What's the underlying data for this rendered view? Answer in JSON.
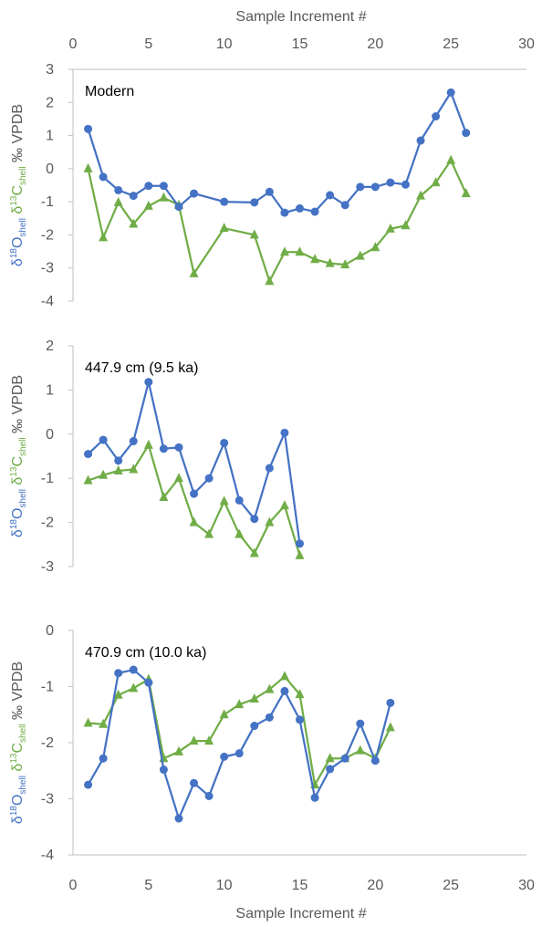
{
  "chart_data": {
    "type": "line",
    "x_axis": {
      "title": "Sample Increment #",
      "range": [
        0,
        30
      ],
      "ticks": [
        0,
        5,
        10,
        15,
        20,
        25,
        30
      ],
      "tick_labels": [
        "0",
        "5",
        "10",
        "15",
        "20",
        "25",
        "30"
      ]
    },
    "y_axis_label": {
      "o_part": "δ18Oshell",
      "c_part": "δ13Cshell",
      "unit": "‰ VPDB",
      "o_prefix": "δ",
      "o_sup": "18",
      "o_elem": "O",
      "o_sub": "shell",
      "c_prefix": "δ",
      "c_sup": "13",
      "c_elem": "C",
      "c_sub": "shell",
      "o_color": "#4472C4",
      "c_color": "#70AD47",
      "unit_color": "#595959"
    },
    "colors": {
      "d18O": "#4472C4",
      "d13C": "#70AD47",
      "axis": "#BFBFBF",
      "text": "#595959"
    },
    "panels": [
      {
        "label": "Modern",
        "ylim": [
          -4,
          3
        ],
        "yticks": [
          -4,
          -3,
          -2,
          -1,
          0,
          1,
          2,
          3
        ],
        "ytick_labels": [
          "-4",
          "-3",
          "-2",
          "-1",
          "0",
          "1",
          "2",
          "3"
        ],
        "series": [
          {
            "key": "d18O",
            "marker": "circle",
            "x": [
              1,
              2,
              3,
              4,
              5,
              6,
              7,
              8,
              10,
              12,
              13,
              14,
              15,
              16,
              17,
              18,
              19,
              20,
              21,
              22,
              23,
              24,
              25,
              26
            ],
            "y": [
              1.2,
              -0.25,
              -0.65,
              -0.82,
              -0.52,
              -0.52,
              -1.15,
              -0.75,
              -1.0,
              -1.02,
              -0.7,
              -1.33,
              -1.2,
              -1.3,
              -0.8,
              -1.1,
              -0.55,
              -0.55,
              -0.42,
              -0.48,
              0.85,
              1.58,
              2.3,
              1.08
            ]
          },
          {
            "key": "d13C",
            "marker": "triangle",
            "x": [
              1,
              2,
              3,
              4,
              5,
              6,
              7,
              8,
              10,
              12,
              13,
              14,
              15,
              16,
              17,
              18,
              19,
              20,
              21,
              22,
              23,
              24,
              25,
              26
            ],
            "y": [
              0.0,
              -2.08,
              -1.02,
              -1.67,
              -1.13,
              -0.88,
              -1.1,
              -3.17,
              -1.8,
              -2.0,
              -3.4,
              -2.52,
              -2.52,
              -2.74,
              -2.86,
              -2.9,
              -2.64,
              -2.38,
              -1.82,
              -1.72,
              -0.82,
              -0.42,
              0.25,
              -0.75
            ]
          }
        ]
      },
      {
        "label": "447.9 cm (9.5 ka)",
        "ylim": [
          -3,
          2
        ],
        "yticks": [
          -3,
          -2,
          -1,
          0,
          1,
          2
        ],
        "ytick_labels": [
          "-3",
          "-2",
          "-1",
          "0",
          "1",
          "2"
        ],
        "series": [
          {
            "key": "d18O",
            "marker": "circle",
            "x": [
              1,
              2,
              3,
              4,
              5,
              6,
              7,
              8,
              9,
              10,
              11,
              12,
              13,
              14,
              15
            ],
            "y": [
              -0.45,
              -0.13,
              -0.6,
              -0.16,
              1.18,
              -0.33,
              -0.3,
              -1.35,
              -1.0,
              -0.2,
              -1.5,
              -1.92,
              -0.77,
              0.03,
              -2.48
            ]
          },
          {
            "key": "d13C",
            "marker": "triangle",
            "x": [
              1,
              2,
              3,
              4,
              5,
              6,
              7,
              8,
              9,
              10,
              11,
              12,
              13,
              14,
              15
            ],
            "y": [
              -1.05,
              -0.93,
              -0.83,
              -0.8,
              -0.25,
              -1.43,
              -1.0,
              -2.0,
              -2.27,
              -1.52,
              -2.27,
              -2.7,
              -2.0,
              -1.62,
              -2.75
            ]
          }
        ]
      },
      {
        "label": "470.9 cm (10.0 ka)",
        "ylim": [
          -4,
          0
        ],
        "yticks": [
          -4,
          -3,
          -2,
          -1,
          0
        ],
        "ytick_labels": [
          "-4",
          "-3",
          "-2",
          "-1",
          "0"
        ],
        "series": [
          {
            "key": "d18O",
            "marker": "circle",
            "x": [
              1,
              2,
              3,
              4,
              5,
              6,
              7,
              8,
              9,
              10,
              11,
              12,
              13,
              14,
              15,
              16,
              17,
              18,
              19,
              20,
              21
            ],
            "y": [
              -2.75,
              -2.28,
              -0.76,
              -0.7,
              -0.93,
              -2.48,
              -3.35,
              -2.72,
              -2.95,
              -2.25,
              -2.19,
              -1.7,
              -1.55,
              -1.08,
              -1.59,
              -2.98,
              -2.47,
              -2.28,
              -1.66,
              -2.32,
              -1.29
            ]
          },
          {
            "key": "d13C",
            "marker": "triangle",
            "x": [
              1,
              2,
              3,
              4,
              5,
              6,
              7,
              8,
              9,
              10,
              11,
              12,
              13,
              14,
              15,
              16,
              17,
              18,
              19,
              20,
              21
            ],
            "y": [
              -1.65,
              -1.67,
              -1.15,
              -1.03,
              -0.87,
              -2.28,
              -2.16,
              -1.97,
              -1.97,
              -1.5,
              -1.32,
              -1.22,
              -1.05,
              -0.82,
              -1.14,
              -2.75,
              -2.28,
              -2.28,
              -2.14,
              -2.28,
              -1.73
            ]
          }
        ]
      }
    ]
  }
}
